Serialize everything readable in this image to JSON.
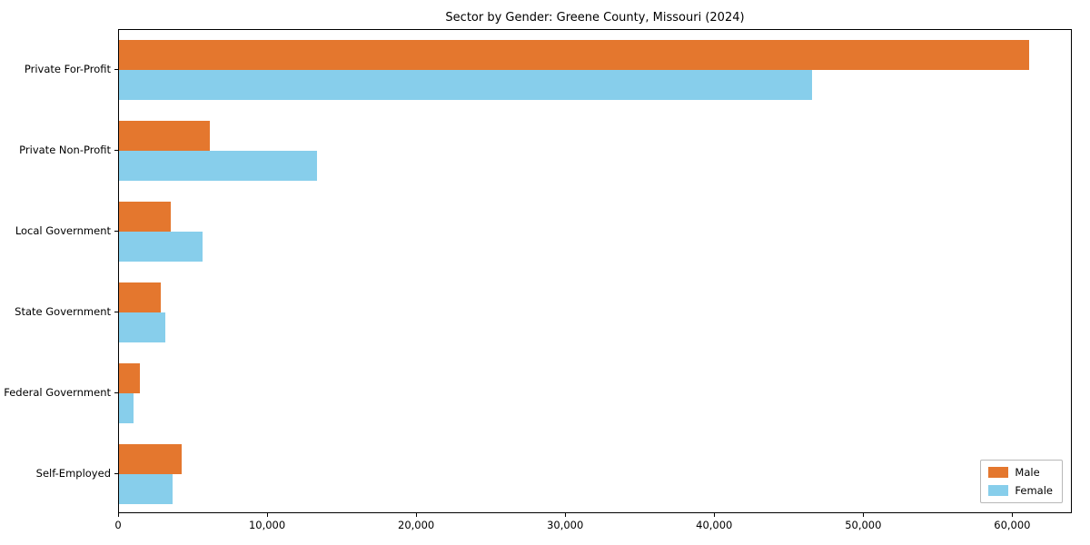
{
  "title": "Sector by Gender: Greene County, Missouri (2024)",
  "chart_data": {
    "type": "bar",
    "orientation": "horizontal",
    "title": "Sector by Gender: Greene County, Missouri (2024)",
    "categories": [
      "Private For-Profit",
      "Private Non-Profit",
      "Local Government",
      "State Government",
      "Federal Government",
      "Self-Employed"
    ],
    "series": [
      {
        "name": "Male",
        "color": "#e4772e",
        "values": [
          61200,
          6100,
          3500,
          2800,
          1400,
          4200
        ]
      },
      {
        "name": "Female",
        "color": "#87ceeb",
        "values": [
          46600,
          13300,
          5600,
          3100,
          1000,
          3600
        ]
      }
    ],
    "xlabel": "",
    "ylabel": "",
    "xlim": [
      0,
      64000
    ],
    "xticks": [
      0,
      10000,
      20000,
      30000,
      40000,
      50000,
      60000
    ],
    "xtick_labels": [
      "0",
      "10,000",
      "20,000",
      "30,000",
      "40,000",
      "50,000",
      "60,000"
    ],
    "grid": false,
    "legend_position": "lower right"
  }
}
